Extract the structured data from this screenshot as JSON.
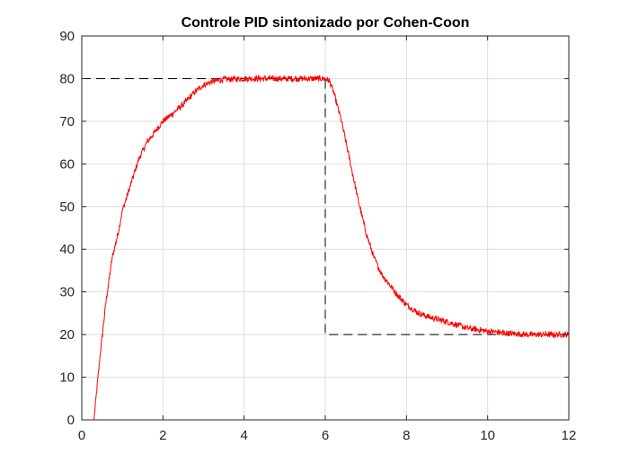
{
  "chart_data": {
    "type": "line",
    "title": "Controle PID sintonizado por Cohen-Coon",
    "xlabel": "",
    "ylabel": "",
    "xlim": [
      0,
      12
    ],
    "ylim": [
      0,
      90
    ],
    "xticks": [
      "0",
      "2",
      "4",
      "6",
      "8",
      "10",
      "12"
    ],
    "yticks": [
      "0",
      "10",
      "20",
      "30",
      "40",
      "50",
      "60",
      "70",
      "80",
      "90"
    ],
    "grid": true,
    "legend": "none",
    "series": [
      {
        "role": "setpoint",
        "color": "#000000",
        "style": "dashed",
        "x": [
          0,
          6,
          6,
          12
        ],
        "y": [
          80,
          80,
          20,
          20
        ]
      },
      {
        "role": "response",
        "color": "#ff0000",
        "style": "solid-noisy",
        "x": [
          0,
          0.2,
          0.3,
          0.45,
          0.6,
          0.75,
          0.9,
          1.0,
          1.2,
          1.4,
          1.6,
          1.8,
          2.0,
          2.2,
          2.5,
          2.8,
          3.0,
          3.2,
          3.5,
          4.0,
          4.5,
          5.0,
          5.5,
          5.9,
          6.0,
          6.1,
          6.2,
          6.4,
          6.6,
          6.8,
          7.0,
          7.2,
          7.4,
          7.6,
          7.8,
          8.0,
          8.3,
          8.6,
          9.0,
          9.5,
          10.0,
          10.5,
          11.0,
          11.5,
          12.0
        ],
        "y": [
          0,
          0,
          0,
          15,
          28,
          38,
          44,
          49,
          55,
          61,
          65,
          67.5,
          70,
          71.5,
          74,
          77,
          78.5,
          79.3,
          79.8,
          80,
          80,
          80,
          80,
          80,
          80,
          79.5,
          77,
          70,
          61,
          52,
          44,
          38,
          34,
          31.5,
          29,
          27,
          25,
          24,
          23,
          21.5,
          20.8,
          20.3,
          20,
          20,
          20
        ]
      }
    ]
  }
}
